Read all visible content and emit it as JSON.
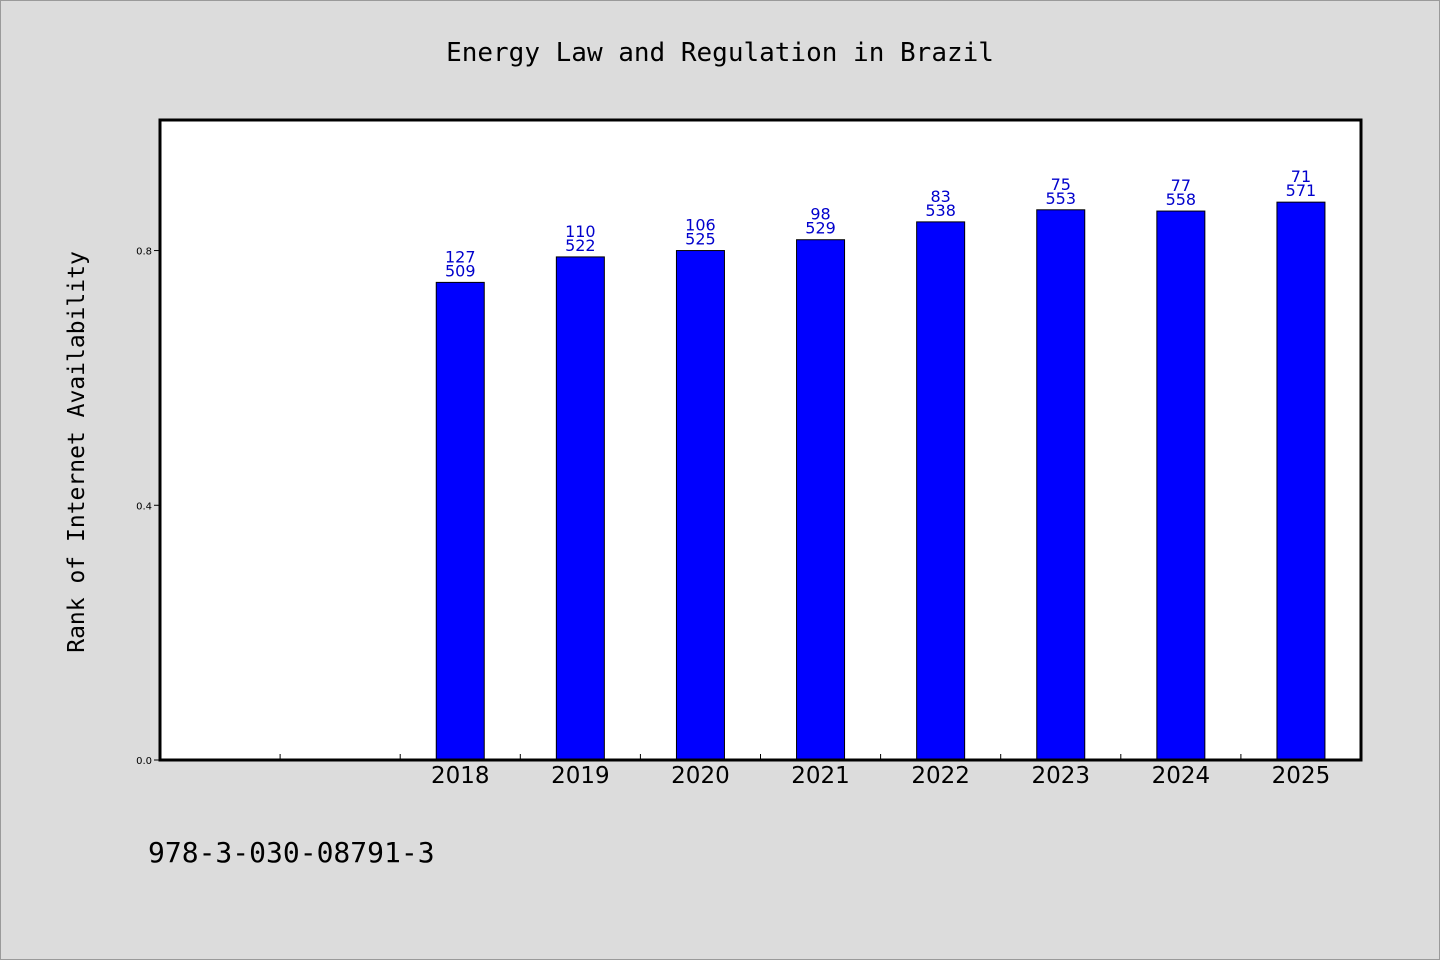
{
  "chart_data": {
    "type": "bar",
    "title": "Energy Law and Regulation in Brazil",
    "xlabel": "",
    "ylabel": "Rank of Internet Availability",
    "categories": [
      "",
      "",
      "2018",
      "2019",
      "2020",
      "2021",
      "2022",
      "2023",
      "2024",
      "2025"
    ],
    "values": [
      null,
      null,
      0.75,
      0.79,
      0.8,
      0.817,
      0.845,
      0.864,
      0.862,
      0.876
    ],
    "labels_top": [
      "",
      "",
      "127",
      "110",
      "106",
      "98",
      "83",
      "75",
      "77",
      "71"
    ],
    "labels_bottom": [
      "",
      "",
      "509",
      "522",
      "525",
      "529",
      "538",
      "553",
      "558",
      "571"
    ],
    "ylim": [
      0,
      1.005
    ],
    "yticks": [
      0.0,
      0.4,
      0.8
    ],
    "ytick_labels": [
      "0.0",
      "0.4",
      "0.8"
    ],
    "grid": false,
    "bar_color": "#0000ff",
    "label_color": "#0000cc"
  },
  "footer": {
    "isbn": "978-3-030-08791-3"
  }
}
